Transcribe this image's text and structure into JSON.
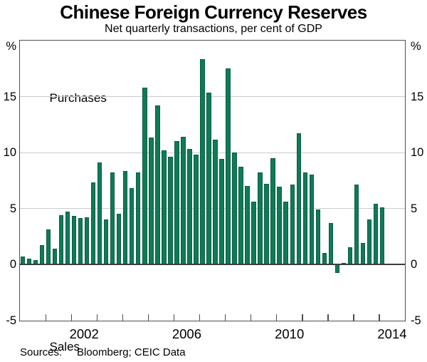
{
  "title": "Chinese Foreign Currency Reserves",
  "subtitle": "Net quarterly transactions, per cent of GDP",
  "annotations": {
    "upper": "Purchases",
    "lower": "Sales"
  },
  "footer": {
    "sources_label": "Sources:",
    "sources_text": "Bloomberg; CEIC Data"
  },
  "colors": {
    "bar_fill": "#0e7b57",
    "bar_border": "#0a5c40",
    "grid": "#cccccc",
    "axis_frame": "#4f4f4f",
    "zero_line": "#3d3d3d",
    "text": "#000000"
  },
  "axes": {
    "unit_left": "%",
    "unit_right": "%",
    "ylim": [
      -5,
      20
    ],
    "y_labels": [
      {
        "text": "%",
        "v": 19.5
      },
      {
        "text": "15",
        "v": 15
      },
      {
        "text": "10",
        "v": 10
      },
      {
        "text": "5",
        "v": 5
      },
      {
        "text": "0",
        "v": 0
      },
      {
        "text": "-5",
        "v": -5
      }
    ],
    "y_gridlines": [
      15,
      10,
      5
    ],
    "x_start": 2000,
    "x_end": 2015,
    "x_tick_years": [
      2001,
      2002,
      2003,
      2004,
      2005,
      2006,
      2007,
      2008,
      2009,
      2010,
      2011,
      2012,
      2013,
      2014
    ],
    "x_year_labels": [
      "2002",
      "2006",
      "2010",
      "2014"
    ]
  },
  "chart_data": {
    "type": "bar",
    "title": "Chinese Foreign Currency Reserves",
    "subtitle": "Net quarterly transactions, per cent of GDP",
    "unit": "per cent of GDP",
    "frequency": "quarterly",
    "ylim": [
      -5,
      20
    ],
    "grid": true,
    "quarters": [
      "2000Q1",
      "2000Q2",
      "2000Q3",
      "2000Q4",
      "2001Q1",
      "2001Q2",
      "2001Q3",
      "2001Q4",
      "2002Q1",
      "2002Q2",
      "2002Q3",
      "2002Q4",
      "2003Q1",
      "2003Q2",
      "2003Q3",
      "2003Q4",
      "2004Q1",
      "2004Q2",
      "2004Q3",
      "2004Q4",
      "2005Q1",
      "2005Q2",
      "2005Q3",
      "2005Q4",
      "2006Q1",
      "2006Q2",
      "2006Q3",
      "2006Q4",
      "2007Q1",
      "2007Q2",
      "2007Q3",
      "2007Q4",
      "2008Q1",
      "2008Q2",
      "2008Q3",
      "2008Q4",
      "2009Q1",
      "2009Q2",
      "2009Q3",
      "2009Q4",
      "2010Q1",
      "2010Q2",
      "2010Q3",
      "2010Q4",
      "2011Q1",
      "2011Q2",
      "2011Q3",
      "2011Q4",
      "2012Q1",
      "2012Q2",
      "2012Q3",
      "2012Q4",
      "2013Q1",
      "2013Q2",
      "2013Q3",
      "2013Q4",
      "2014Q1"
    ],
    "values": [
      0.7,
      0.5,
      0.4,
      1.7,
      3.1,
      1.4,
      4.4,
      4.7,
      4.3,
      4.1,
      4.2,
      7.3,
      9.1,
      4.0,
      8.2,
      4.5,
      8.3,
      6.8,
      8.2,
      15.8,
      11.3,
      14.2,
      10.2,
      9.6,
      11.0,
      11.4,
      10.3,
      9.8,
      18.3,
      15.3,
      11.1,
      9.4,
      17.5,
      10.0,
      8.7,
      7.0,
      5.6,
      8.2,
      7.2,
      9.5,
      6.9,
      5.6,
      7.1,
      11.7,
      8.2,
      8.0,
      4.9,
      1.0,
      3.7,
      -0.8,
      0.1,
      1.5,
      7.1,
      1.9,
      4.0,
      5.4,
      5.1
    ]
  }
}
